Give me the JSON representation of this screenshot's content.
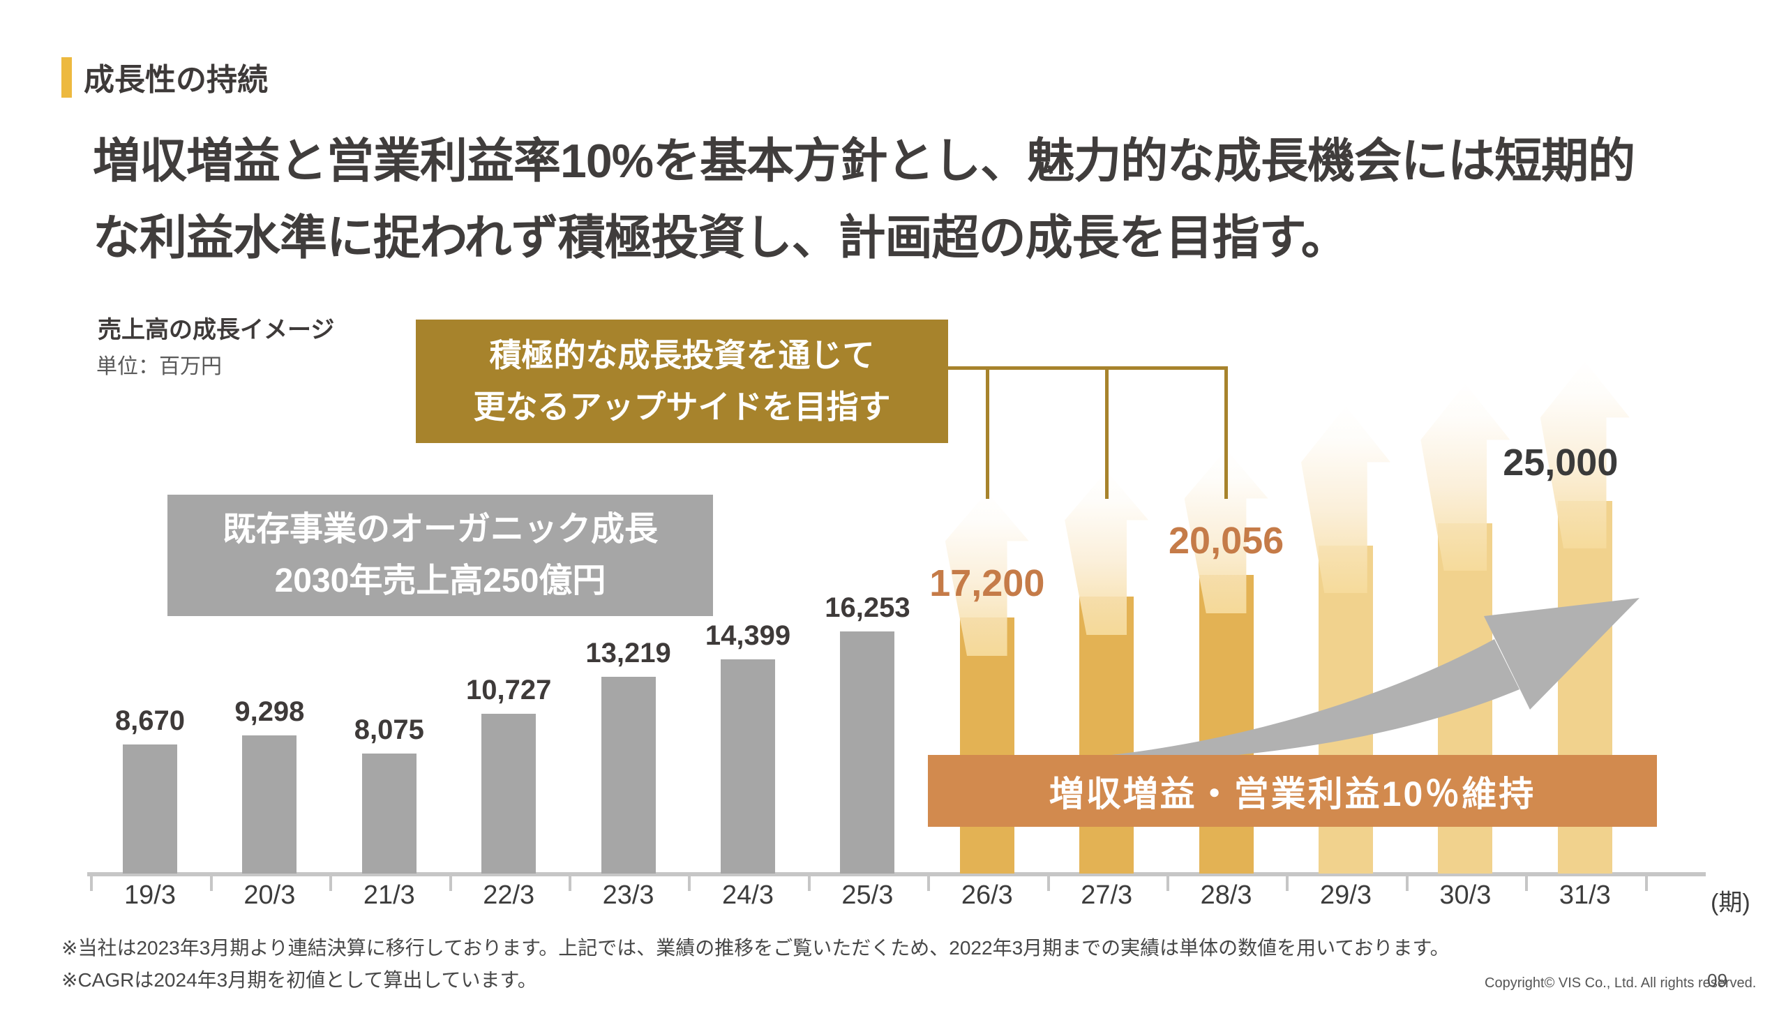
{
  "slide": {
    "kicker": "成長性の持続",
    "title_lines": [
      "増収増益と営業利益率10%を基本方針とし、魅力的な成長機会には短期的",
      "な利益水準に捉われず積極投資し、計画超の成長を目指す。"
    ],
    "chart_title": "売上高の成長イメージ",
    "chart_unit": "単位：百万円",
    "gold_callout_lines": [
      "積極的な成長投資を通じて",
      "更なるアップサイドを目指す"
    ],
    "gray_callout_lines": [
      "既存事業のオーガニック成長",
      "2030年売上高250億円"
    ],
    "banner": "増収増益・営業利益10％維持",
    "axis_unit": "(期)",
    "footnote1": "※当社は2023年3月期より連結決算に移行しております。上記では、業績の推移をご覧いただくため、2022年3月期までの実績は単体の数値を用いております。",
    "footnote2": "※CAGRは2024年3月期を初値として算出しています。",
    "copyright": "Copyright© VIS Co., Ltd. All rights reserved.",
    "page_number": "09"
  },
  "colors": {
    "accent_gold": "#EDB93F",
    "callout_gold": "#A7832C",
    "callout_gray": "#A6A6A6",
    "banner_orange": "#D28A4E",
    "value_label_orange": "#C57B48",
    "swoosh_gray": "#B1B1B1"
  },
  "chart_data": {
    "type": "bar",
    "title": "売上高の成長イメージ",
    "unit": "百万円",
    "xlabel": "(期)",
    "ylim": [
      0,
      25000
    ],
    "grid": false,
    "legend": "none",
    "categories": [
      "19/3",
      "20/3",
      "21/3",
      "22/3",
      "23/3",
      "24/3",
      "25/3",
      "26/3",
      "27/3",
      "28/3",
      "29/3",
      "30/3",
      "31/3"
    ],
    "values": [
      8670,
      9298,
      8075,
      10727,
      13219,
      14399,
      16253,
      17200,
      18600,
      20056,
      22000,
      23500,
      25000
    ],
    "value_labels": [
      "8,670",
      "9,298",
      "8,075",
      "10,727",
      "13,219",
      "14,399",
      "16,253",
      "17,200",
      "",
      "20,056",
      "",
      "",
      "25,000"
    ],
    "label_styles": [
      "dark",
      "dark",
      "dark",
      "dark",
      "dark",
      "dark",
      "dark",
      "orange",
      "none",
      "orange",
      "none",
      "none",
      "big-dark"
    ],
    "groups": [
      "actual",
      "actual",
      "actual",
      "actual",
      "actual",
      "actual",
      "actual",
      "plan",
      "plan",
      "plan",
      "target",
      "target",
      "target"
    ],
    "estimated_indices": [
      8,
      10,
      11
    ],
    "group_colors": {
      "actual": "#A6A6A6",
      "plan": "#E3B254",
      "target": "#F1D28D"
    }
  }
}
